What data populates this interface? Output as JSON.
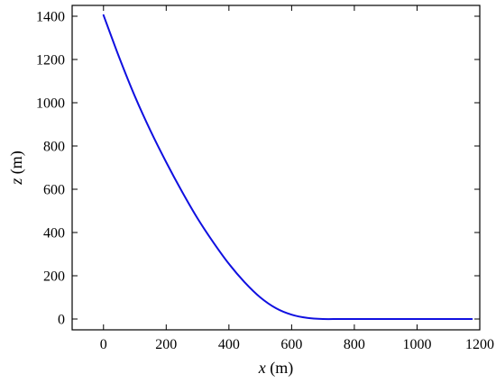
{
  "chart_data": {
    "type": "line",
    "xlabel_var": "x",
    "xlabel_unit": " (m)",
    "ylabel_var": "z",
    "ylabel_unit": " (m)",
    "xlim": [
      -100,
      1200
    ],
    "ylim": [
      -50,
      1450
    ],
    "xticks": [
      0,
      200,
      400,
      600,
      800,
      1000,
      1200
    ],
    "yticks": [
      0,
      200,
      400,
      600,
      800,
      1000,
      1200,
      1400
    ],
    "grid": false,
    "series": [
      {
        "color": "#1010e0",
        "x": [
          0,
          50,
          100,
          150,
          200,
          250,
          300,
          350,
          400,
          450,
          500,
          550,
          600,
          650,
          700,
          750,
          800,
          900,
          1000,
          1100,
          1175
        ],
        "y": [
          1405,
          1210,
          1030,
          870,
          725,
          590,
          465,
          355,
          255,
          170,
          100,
          50,
          20,
          5,
          0,
          0,
          0,
          0,
          0,
          0,
          0
        ]
      }
    ]
  }
}
